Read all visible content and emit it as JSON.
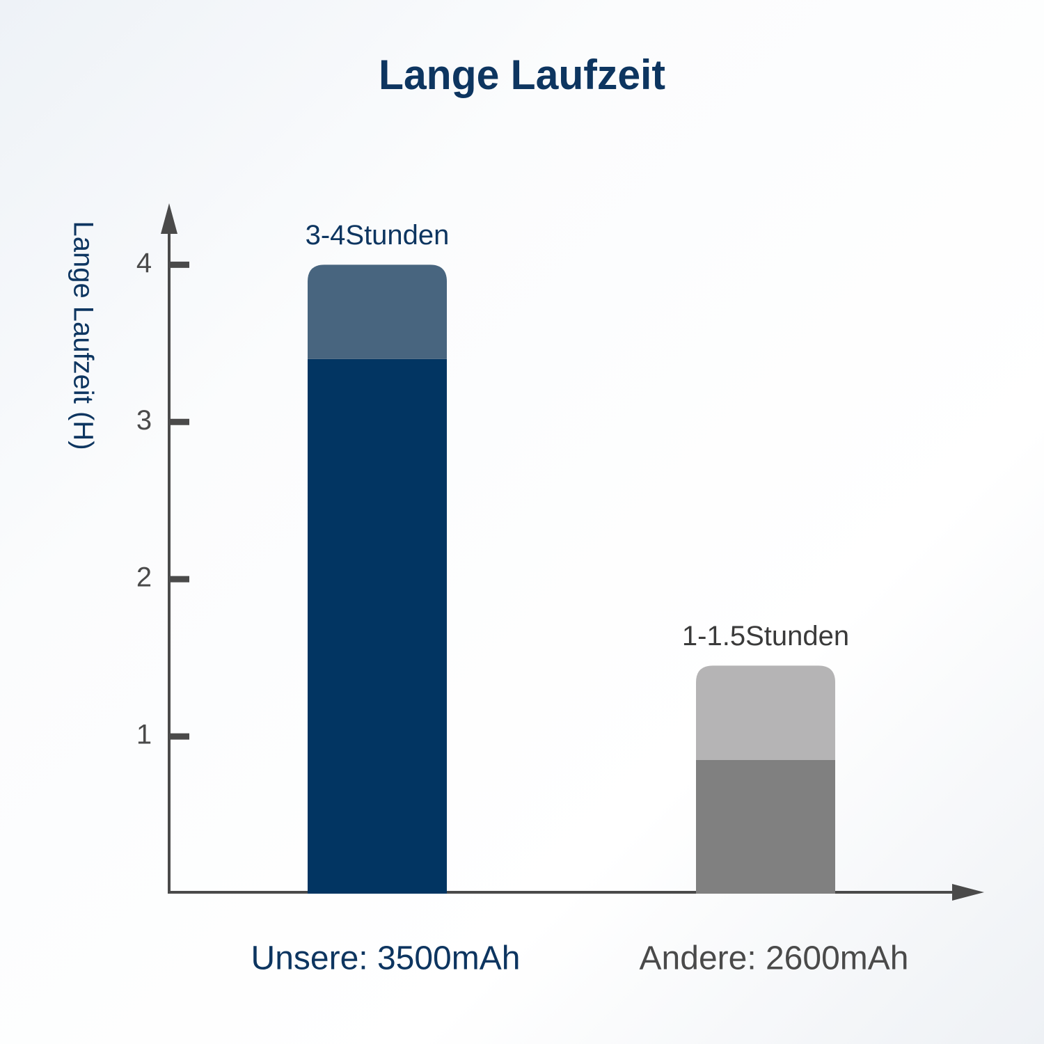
{
  "chart_data": {
    "type": "stacked_bar",
    "title": "Lange Laufzeit",
    "y_label": "Lange Laufzeit (H)",
    "categories": [
      "Unsere: 3500mAh",
      "Andere: 2600mAh"
    ],
    "category_colors": [
      "#0d3560",
      "#4a4a4a"
    ],
    "series": [
      {
        "colors": [
          "#023562",
          "#808080"
        ],
        "values": [
          3.4,
          0.85
        ]
      },
      {
        "colors": [
          "#48657f",
          "#b5b4b5"
        ],
        "values": [
          0.6,
          0.6
        ]
      }
    ],
    "annotations": [
      "3-4Stunden",
      "1-1.5Stunden"
    ],
    "annotation_colors": [
      "#0d3560",
      "#3a3a3a"
    ],
    "ylim": [
      0,
      4.4
    ],
    "yticks": [
      1,
      2,
      3,
      4
    ]
  }
}
